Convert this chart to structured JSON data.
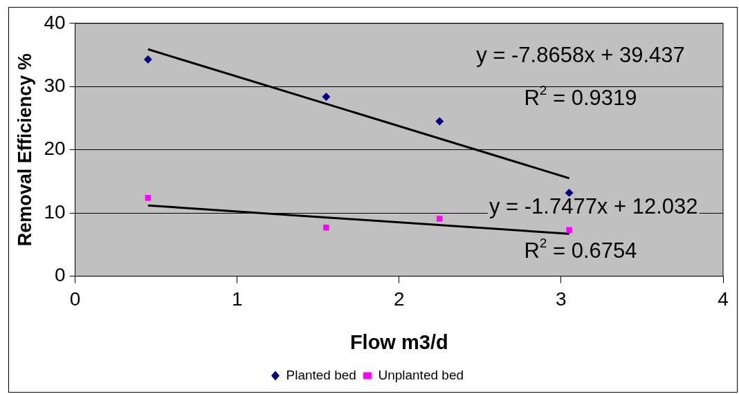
{
  "chart_data": {
    "type": "scatter",
    "xlabel": "Flow m3/d",
    "ylabel": "Removal Efficiency %",
    "xlim": [
      0,
      4
    ],
    "xticks": [
      0,
      1,
      2,
      3,
      4
    ],
    "ylim": [
      0,
      40
    ],
    "yticks": [
      0,
      10,
      20,
      30,
      40
    ],
    "grid": "y",
    "legend": "bottom",
    "series": [
      {
        "name": "Planted bed",
        "color": "#000080",
        "marker": "diamond",
        "x": [
          0.45,
          1.55,
          2.25,
          3.05
        ],
        "values": [
          34.3,
          28.4,
          24.5,
          13.2
        ]
      },
      {
        "name": "Unplanted bed",
        "color": "#ff00ff",
        "marker": "square",
        "x": [
          0.45,
          1.55,
          2.25,
          3.05
        ],
        "values": [
          12.4,
          7.7,
          9.1,
          7.3
        ]
      },
      {
        "type": "line",
        "color": "#000000",
        "marker": "none",
        "line_style": "solid",
        "x": [
          0.45,
          3.05
        ],
        "values": [
          35.9,
          15.5
        ]
      },
      {
        "type": "line",
        "color": "#000000",
        "marker": "none",
        "line_style": "solid",
        "x": [
          0.45,
          3.05
        ],
        "values": [
          11.2,
          6.7
        ]
      }
    ],
    "annotations": [
      "y = -7.8658x + 39.437",
      "R$^{2}$ = 0.9319",
      "y = -1.7477x + 12.032",
      "R$^{2}$ = 0.6754"
    ]
  }
}
